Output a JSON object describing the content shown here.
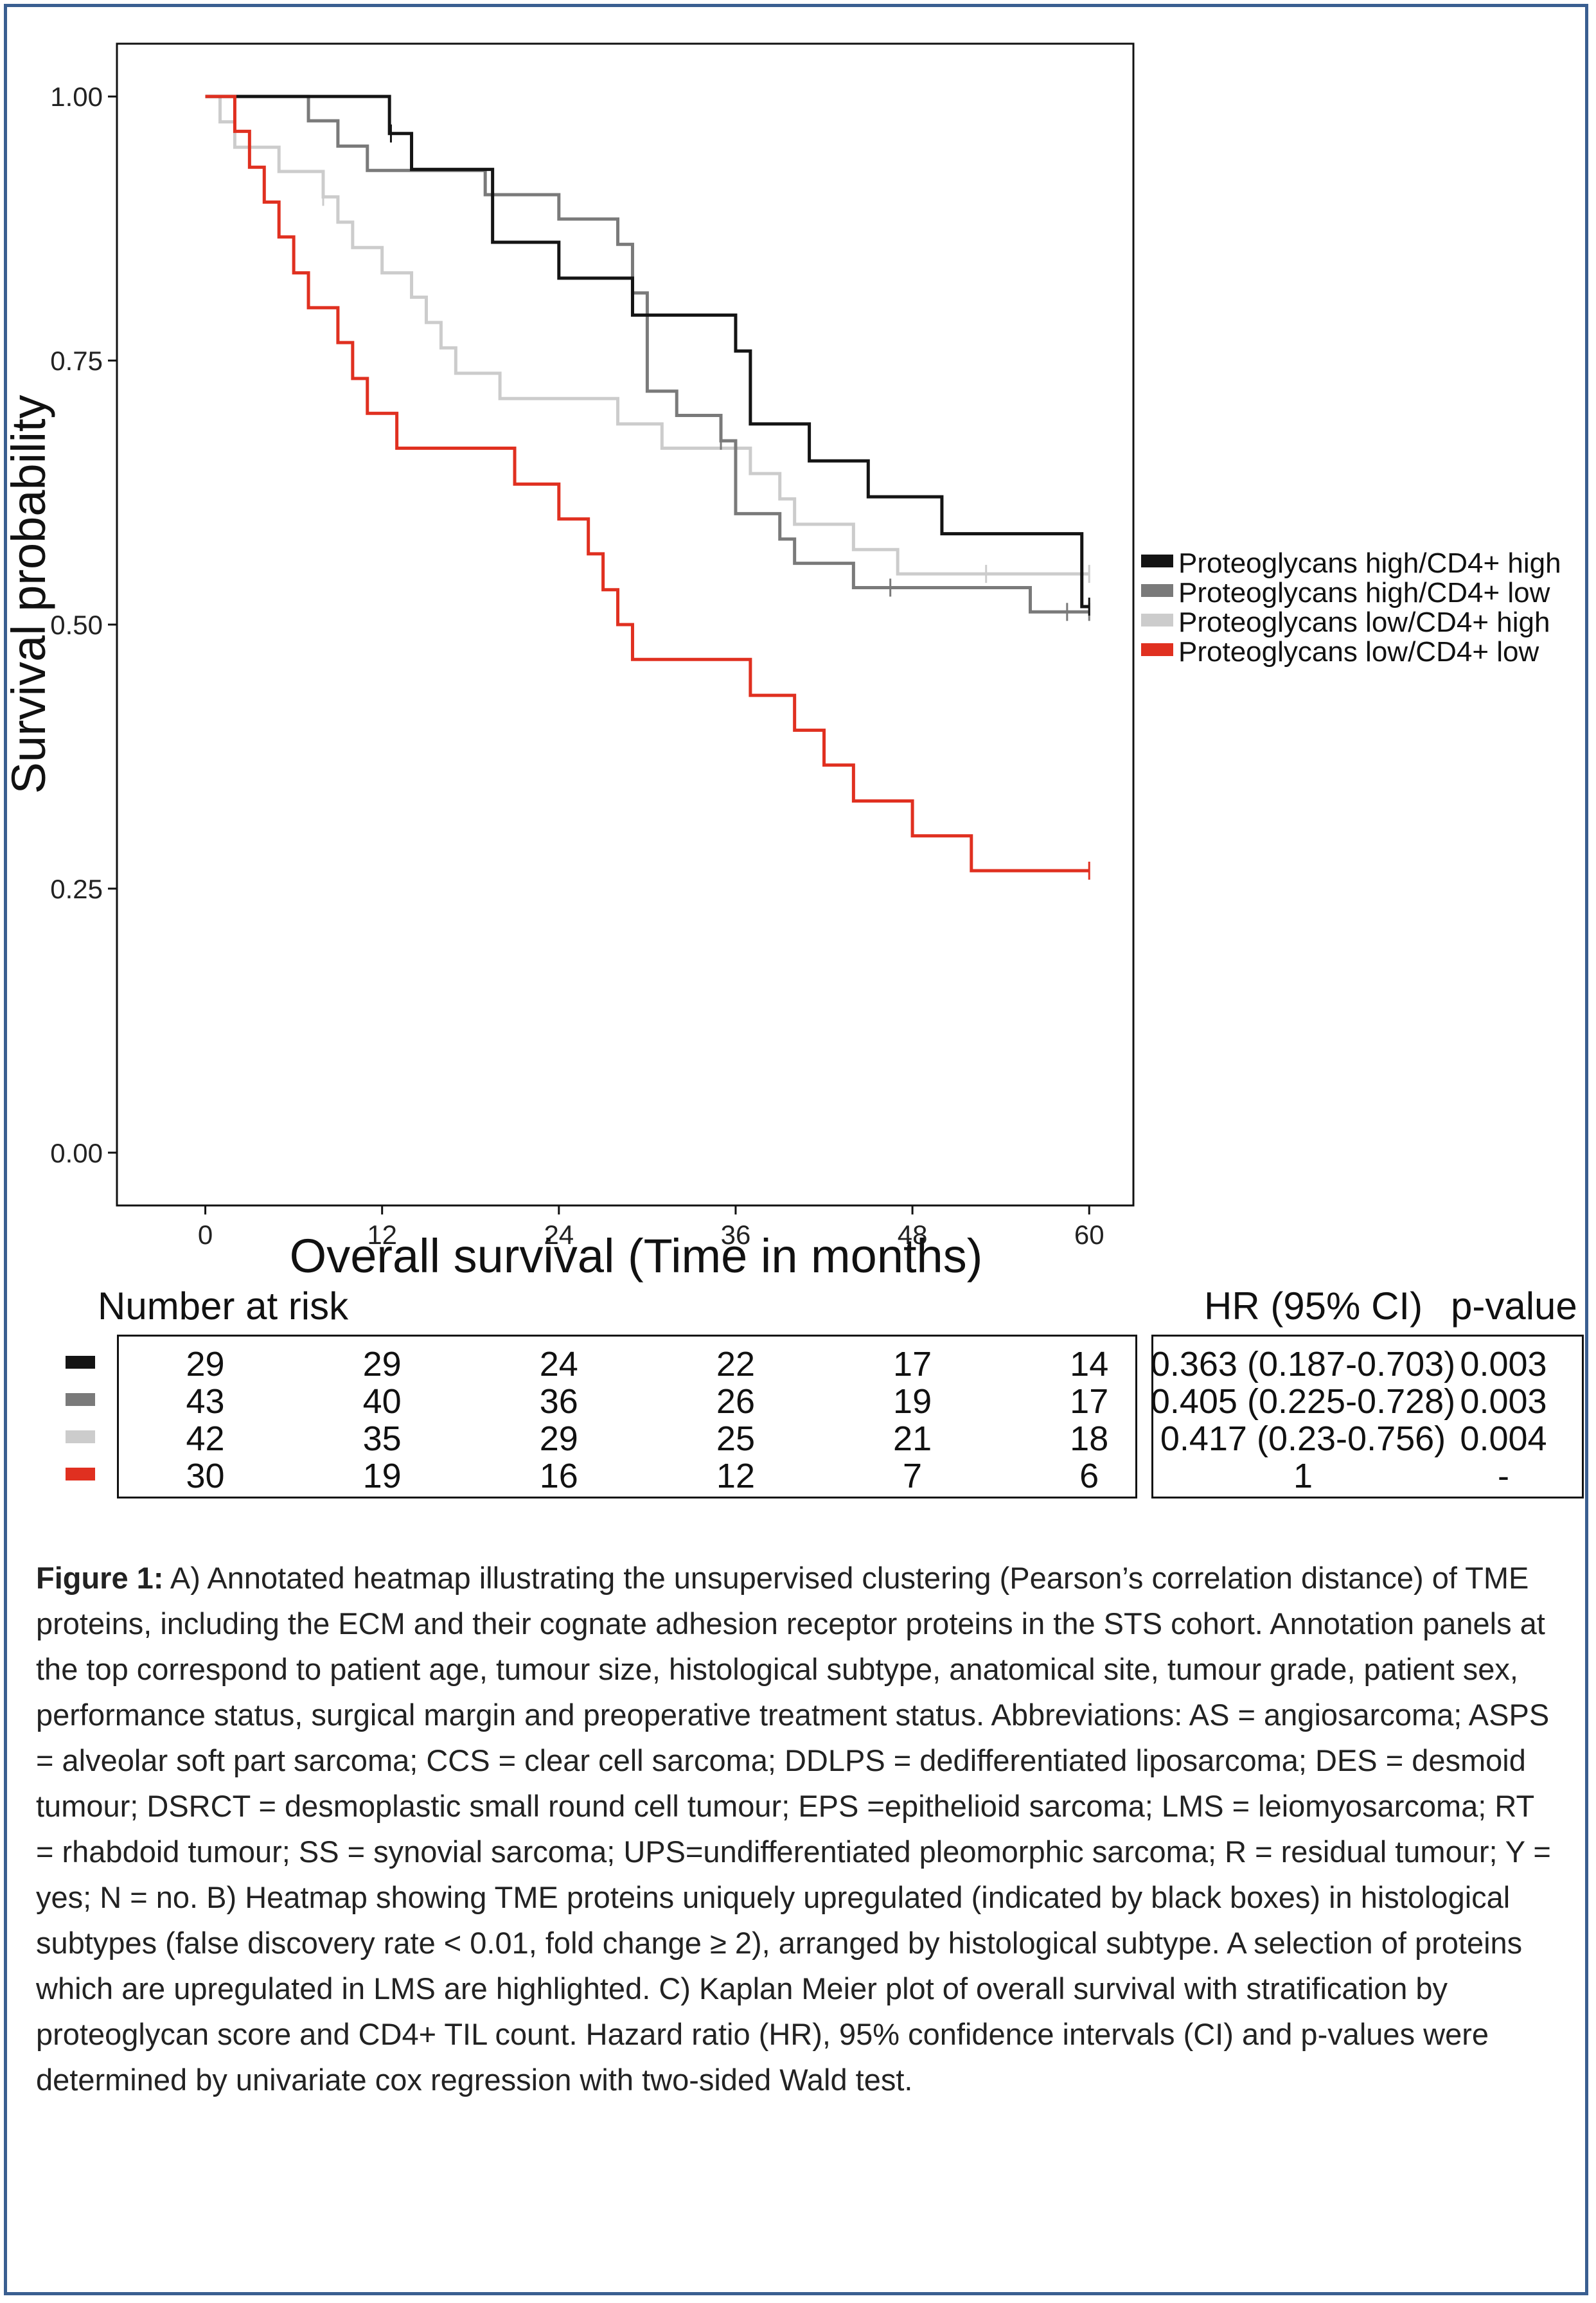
{
  "chart_data": {
    "type": "line",
    "step": true,
    "xlabel": "Overall survival (Time in months)",
    "ylabel": "Survival probability",
    "xlim": [
      -6,
      63
    ],
    "ylim": [
      -0.05,
      1.05
    ],
    "xticks": [
      0,
      12,
      24,
      36,
      48,
      60
    ],
    "yticks": [
      "1.00",
      "0.75",
      "0.50",
      "0.25",
      "0.00"
    ],
    "ytick_values": [
      1.0,
      0.75,
      0.5,
      0.25,
      0.0
    ],
    "grid": false,
    "legend_position": "right",
    "series": [
      {
        "name": "Proteoglycans high/CD4+ high",
        "color": "#141414",
        "x": [
          0,
          12.5,
          14,
          19.5,
          24,
          29,
          36,
          37,
          41,
          45,
          50,
          59.5,
          60
        ],
        "y": [
          1.0,
          0.965,
          0.931,
          0.862,
          0.828,
          0.793,
          0.759,
          0.69,
          0.655,
          0.621,
          0.586,
          0.517,
          0.517
        ],
        "censor_x": [
          12.6,
          60
        ],
        "censor_y": [
          0.965,
          0.517
        ]
      },
      {
        "name": "Proteoglycans high/CD4+ low",
        "color": "#7a7a7a",
        "x": [
          0,
          7,
          9,
          11,
          19,
          24,
          28,
          29,
          30,
          32,
          35,
          36,
          39,
          40,
          44,
          56,
          60
        ],
        "y": [
          1.0,
          0.977,
          0.953,
          0.93,
          0.907,
          0.884,
          0.86,
          0.814,
          0.721,
          0.698,
          0.674,
          0.605,
          0.581,
          0.558,
          0.535,
          0.512,
          0.512
        ],
        "censor_x": [
          35,
          46.5,
          58.5,
          60
        ],
        "censor_y": [
          0.674,
          0.535,
          0.512,
          0.512
        ]
      },
      {
        "name": "Proteoglycans low/CD4+ high",
        "color": "#cccccc",
        "x": [
          0,
          1,
          2,
          5,
          8,
          9,
          10,
          12,
          14,
          15,
          16,
          17,
          20,
          28,
          31,
          37,
          39,
          40,
          44,
          47,
          60
        ],
        "y": [
          1.0,
          0.976,
          0.952,
          0.929,
          0.905,
          0.881,
          0.857,
          0.833,
          0.81,
          0.786,
          0.762,
          0.738,
          0.714,
          0.69,
          0.667,
          0.643,
          0.619,
          0.595,
          0.571,
          0.548,
          0.548
        ],
        "censor_x": [
          8,
          53,
          60
        ],
        "censor_y": [
          0.905,
          0.548,
          0.548
        ]
      },
      {
        "name": "Proteoglycans low/CD4+ low",
        "color": "#e03020",
        "x": [
          0,
          2,
          3,
          4,
          5,
          6,
          7,
          9,
          10,
          11,
          13,
          21,
          24,
          26,
          27,
          28,
          29,
          37,
          40,
          42,
          44,
          48,
          52,
          60
        ],
        "y": [
          1.0,
          0.967,
          0.933,
          0.9,
          0.867,
          0.833,
          0.8,
          0.767,
          0.733,
          0.7,
          0.667,
          0.633,
          0.6,
          0.567,
          0.533,
          0.5,
          0.467,
          0.433,
          0.4,
          0.367,
          0.333,
          0.3,
          0.267,
          0.267
        ],
        "censor_x": [
          60
        ],
        "censor_y": [
          0.267
        ]
      }
    ]
  },
  "risk_table": {
    "title": "Number at risk",
    "rows": [
      {
        "values": [
          "29",
          "29",
          "24",
          "22",
          "17",
          "14"
        ],
        "color": "#141414"
      },
      {
        "values": [
          "43",
          "40",
          "36",
          "26",
          "19",
          "17"
        ],
        "color": "#7a7a7a"
      },
      {
        "values": [
          "42",
          "35",
          "29",
          "25",
          "21",
          "18"
        ],
        "color": "#cccccc"
      },
      {
        "values": [
          "30",
          "19",
          "16",
          "12",
          "7",
          "6"
        ],
        "color": "#e03020"
      }
    ]
  },
  "hr_table": {
    "hr_header": "HR (95% CI)",
    "p_header": "p-value",
    "rows": [
      {
        "hr": "0.363 (0.187-0.703)",
        "p": "0.003"
      },
      {
        "hr": "0.405 (0.225-0.728)",
        "p": "0.003"
      },
      {
        "hr": "0.417 (0.23-0.756)",
        "p": "0.004"
      },
      {
        "hr": "1",
        "p": "-"
      }
    ]
  },
  "caption": {
    "label": "Figure 1:",
    "text": " A) Annotated heatmap illustrating the unsupervised clustering (Pearson’s correlation distance) of TME proteins, including the ECM and their cognate adhesion receptor proteins in the STS cohort. Annotation panels at the top correspond to patient age, tumour size, histological subtype, anatomical site, tumour grade, patient sex, performance status, surgical margin and preoperative treatment status. Abbreviations: AS = angiosarcoma; ASPS = alveolar soft part sarcoma; CCS = clear cell sarcoma; DDLPS = dedifferentiated liposarcoma; DES = desmoid tumour; DSRCT = desmoplastic small round cell tumour; EPS =epithelioid sarcoma; LMS = leiomyosarcoma; RT = rhabdoid tumour; SS = synovial sarcoma; UPS=undifferentiated pleomorphic sarcoma; R = residual tumour; Y = yes; N = no. B) Heatmap showing TME proteins uniquely upregulated (indicated by black boxes) in histological subtypes (false discovery rate < 0.01, fold change ≥ 2), arranged by histological subtype. A selection of proteins which are upregulated in LMS are highlighted. C) Kaplan Meier plot of overall survival with stratification by proteoglycan score and CD4+ TIL count. Hazard ratio (HR), 95% confidence intervals (CI) and p-values were determined by univariate cox regression with two-sided Wald test."
  }
}
